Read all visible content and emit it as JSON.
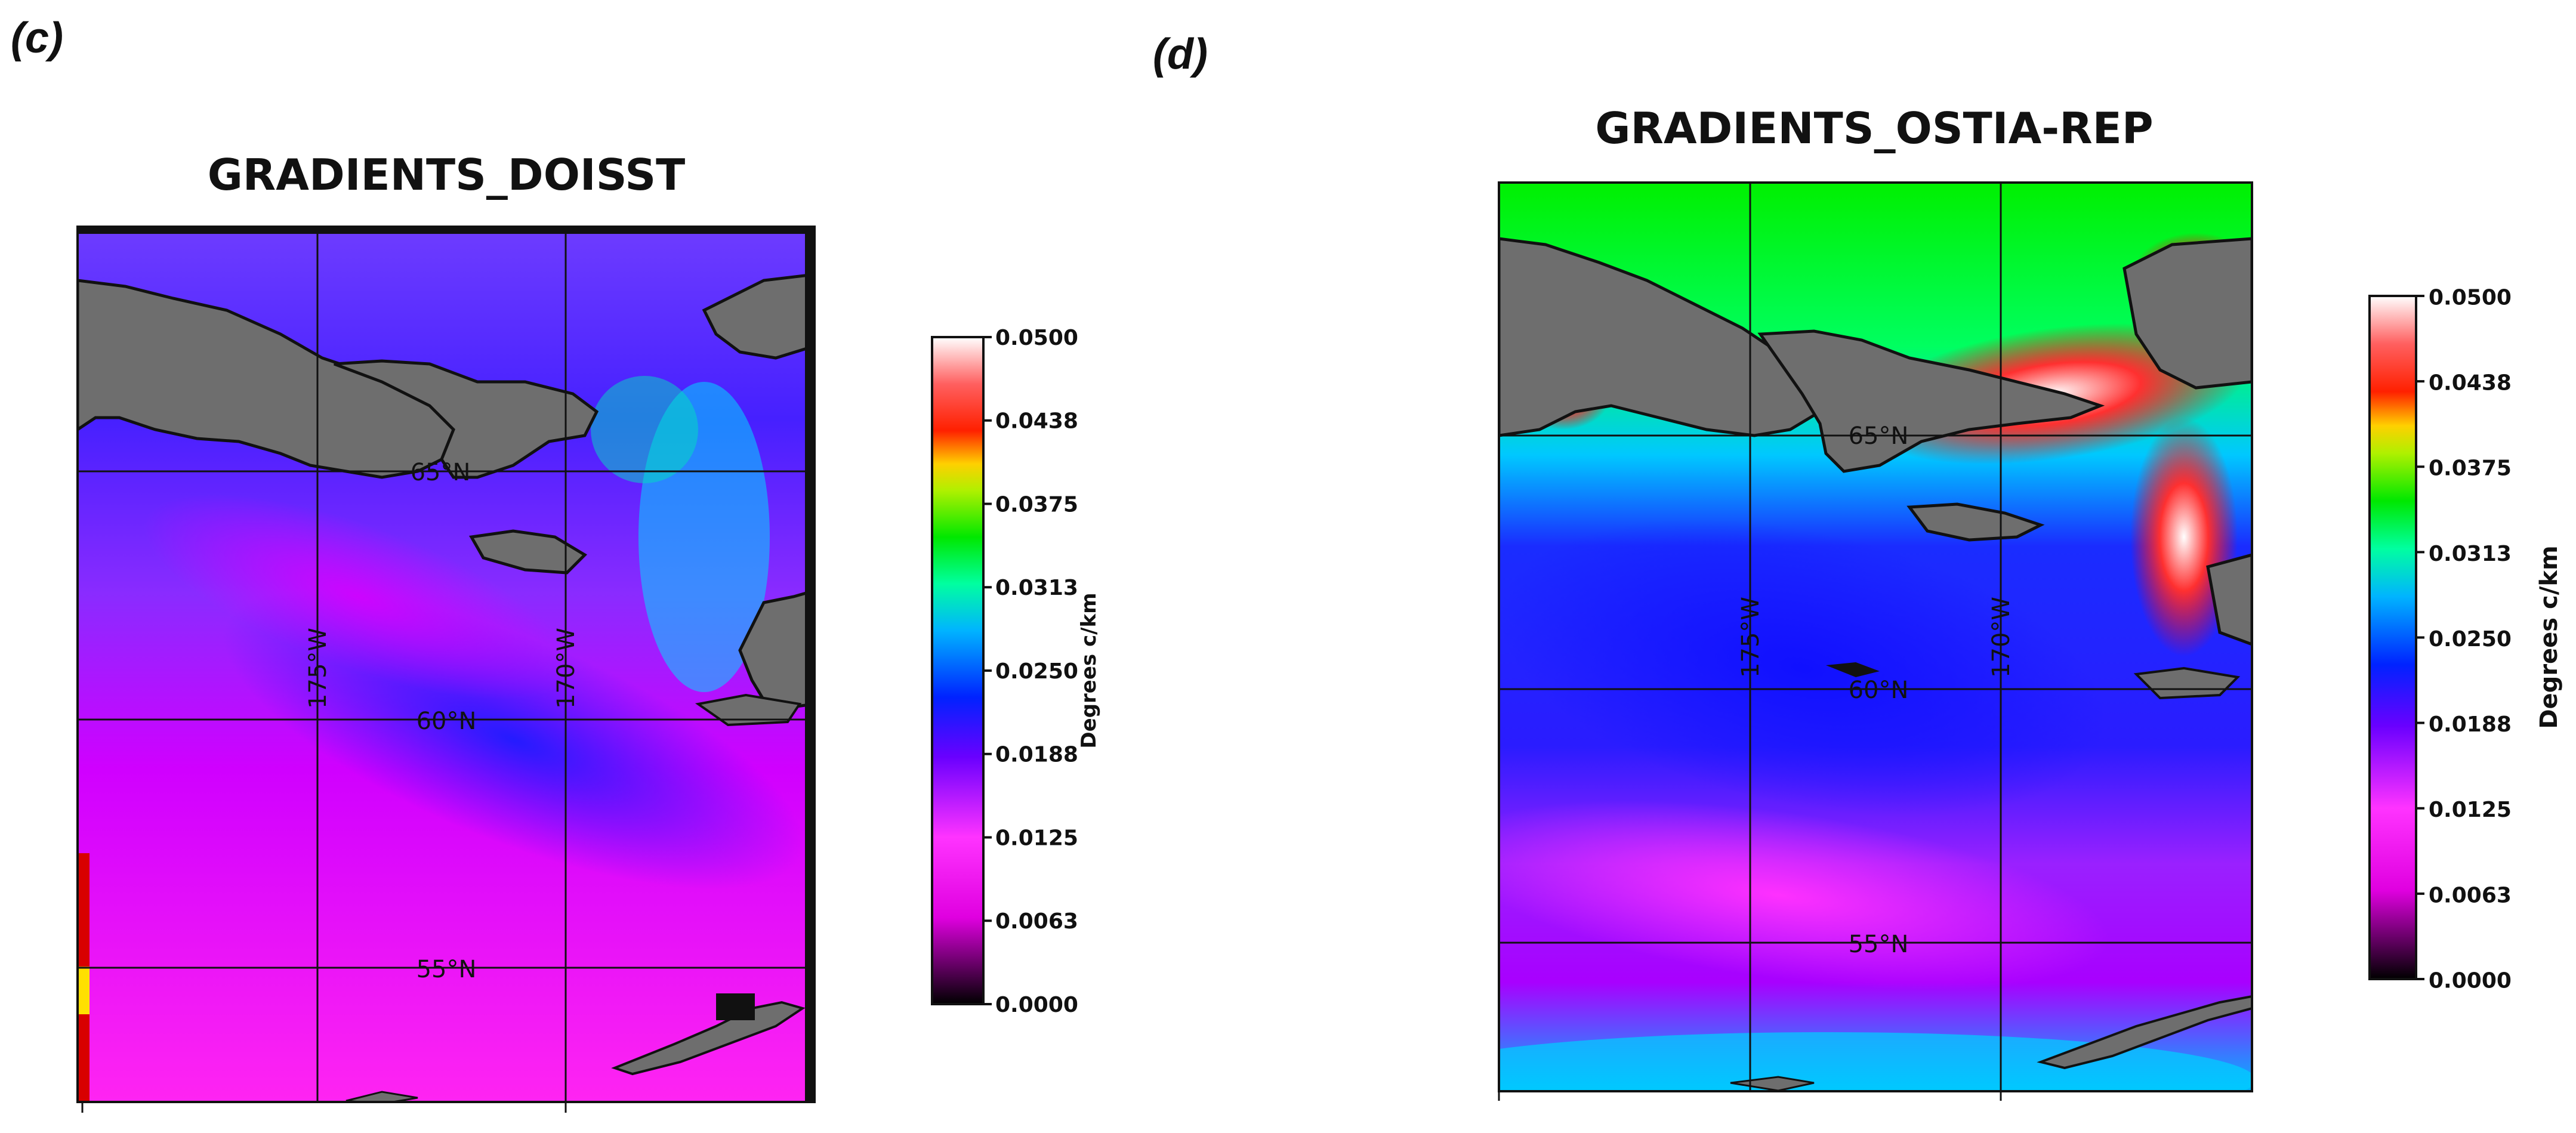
{
  "panels": [
    {
      "label": "(c)",
      "title": "GRADIENTS_DOISST",
      "lat_labels": [
        "65°N",
        "60°N",
        "55°N"
      ],
      "lon_labels": [
        "175°W",
        "170°W"
      ],
      "colorbar": {
        "title": "Degrees c/km",
        "ticks": [
          "0.0500",
          "0.0438",
          "0.0375",
          "0.0313",
          "0.0250",
          "0.0188",
          "0.0125",
          "0.0063",
          "0.0000"
        ]
      }
    },
    {
      "label": "(d)",
      "title": "GRADIENTS_OSTIA-REP",
      "lat_labels": [
        "65°N",
        "60°N",
        "55°N"
      ],
      "lon_labels": [
        "175°W",
        "170°W"
      ],
      "colorbar": {
        "title": "Degrees c/km",
        "ticks": [
          "0.0500",
          "0.0438",
          "0.0375",
          "0.0313",
          "0.0250",
          "0.0188",
          "0.0125",
          "0.0063",
          "0.0000"
        ]
      }
    }
  ],
  "colors": {
    "land": "#6e6e6e",
    "coastline": "#111111",
    "colormap": [
      "#000000",
      "#ff00ff",
      "#0000ff",
      "#00c8ff",
      "#00ff00",
      "#ffff00",
      "#ff0000",
      "#ffffff"
    ]
  }
}
